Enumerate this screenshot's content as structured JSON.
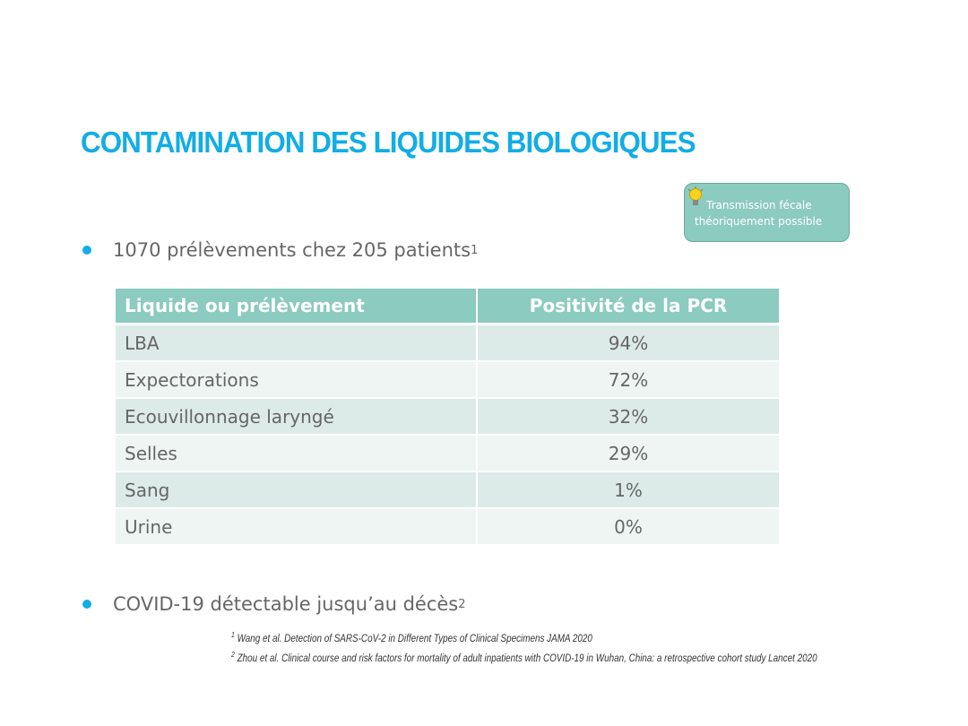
{
  "title": "CONTAMINATION DES LIQUIDES BIOLOGIQUES",
  "callout": {
    "line1": "Transmission fécale",
    "line2": "théoriquement possible",
    "icon": "lightbulb-icon"
  },
  "bullets": [
    {
      "text": "1070 prélèvements chez 205 patients",
      "sup": "1"
    },
    {
      "text": "COVID-19 détectable jusqu’au décès",
      "sup": "2"
    }
  ],
  "table": {
    "headers": [
      "Liquide ou prélèvement",
      "Positivité de la PCR"
    ],
    "rows": [
      [
        "LBA",
        "94%"
      ],
      [
        "Expectorations",
        "72%"
      ],
      [
        "Ecouvillonnage laryngé",
        "32%"
      ],
      [
        "Selles",
        "29%"
      ],
      [
        "Sang",
        "1%"
      ],
      [
        "Urine",
        "0%"
      ]
    ]
  },
  "references": [
    {
      "num": "1",
      "text": "Wang et al. Detection of SARS-CoV-2 in Different Types of Clinical Specimens JAMA 2020"
    },
    {
      "num": "2",
      "text": "Zhou et al. Clinical course and risk factors for mortality of adult inpatients with COVID-19 in Wuhan, China: a retrospective cohort study Lancet 2020"
    }
  ],
  "colors": {
    "title": "#12ade6",
    "header": "#8ccbbf",
    "row_odd": "#dcebe8",
    "row_even": "#eef5f3"
  }
}
